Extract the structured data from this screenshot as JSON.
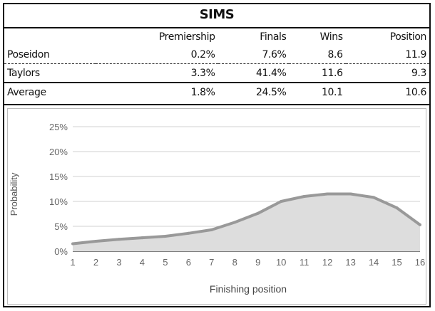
{
  "title": "SIMS",
  "table": {
    "headers": [
      "",
      "Premiership",
      "Finals",
      "Wins",
      "Position"
    ],
    "rows": [
      {
        "name": "Poseidon",
        "premiership": "0.2%",
        "finals": "7.6%",
        "wins": "8.6",
        "position": "11.9"
      },
      {
        "name": "Taylors",
        "premiership": "3.3%",
        "finals": "41.4%",
        "wins": "11.6",
        "position": "9.3"
      },
      {
        "name": "Average",
        "premiership": "1.8%",
        "finals": "24.5%",
        "wins": "10.1",
        "position": "10.6"
      }
    ]
  },
  "chart_data": {
    "type": "area",
    "x": [
      1,
      2,
      3,
      4,
      5,
      6,
      7,
      8,
      9,
      10,
      11,
      12,
      13,
      14,
      15,
      16
    ],
    "series": [
      {
        "values": [
          1.5,
          2.0,
          2.4,
          2.7,
          3.0,
          3.6,
          4.3,
          5.8,
          7.6,
          10.0,
          11.0,
          11.5,
          11.5,
          10.8,
          8.7,
          5.3
        ]
      }
    ],
    "xlabel": "Finishing position",
    "ylabel": "Probability",
    "yticks": [
      "0%",
      "5%",
      "10%",
      "15%",
      "20%",
      "25%"
    ],
    "ylim": [
      0,
      25
    ],
    "xlim": [
      1,
      16
    ],
    "grid": true,
    "line_color": "#999999",
    "fill_color": "#dddddd"
  }
}
